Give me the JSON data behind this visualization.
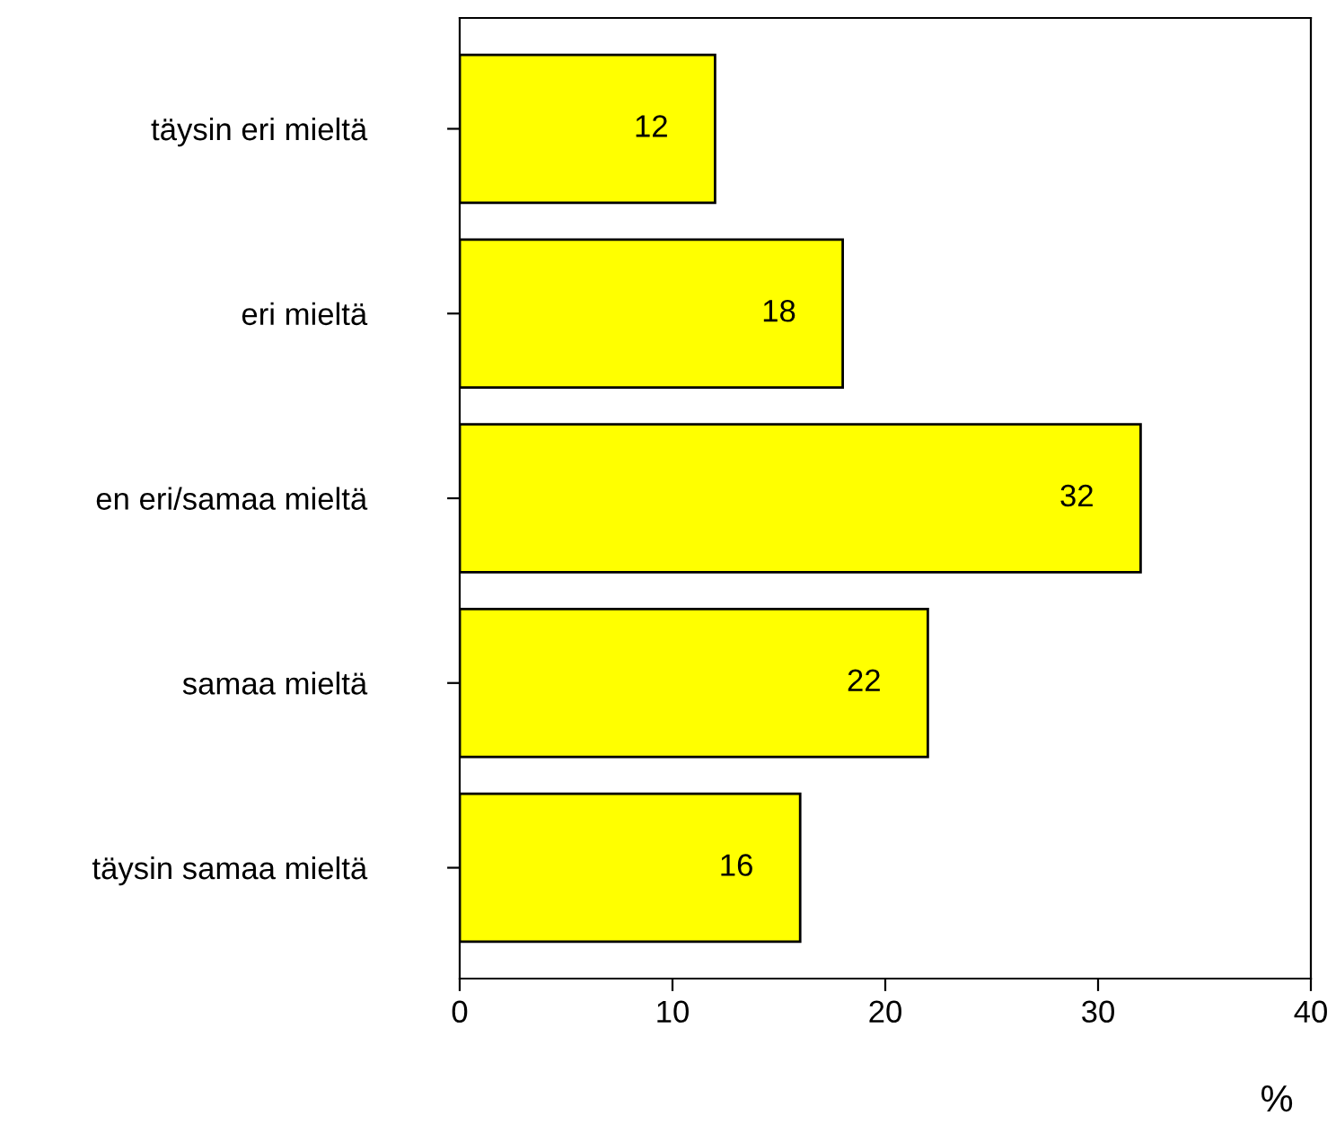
{
  "chart_data": {
    "type": "bar",
    "orientation": "horizontal",
    "xlabel": "%",
    "categories": [
      "täysin eri mieltä",
      "eri mieltä",
      "en eri/samaa mieltä",
      "samaa mieltä",
      "täysin samaa mieltä"
    ],
    "values": [
      12,
      18,
      32,
      22,
      16
    ],
    "color": "#ffff00",
    "xlim": [
      0,
      40
    ],
    "xticks": [
      0,
      10,
      20,
      30,
      40
    ],
    "grid": false,
    "legend": false,
    "data_labels": true
  }
}
